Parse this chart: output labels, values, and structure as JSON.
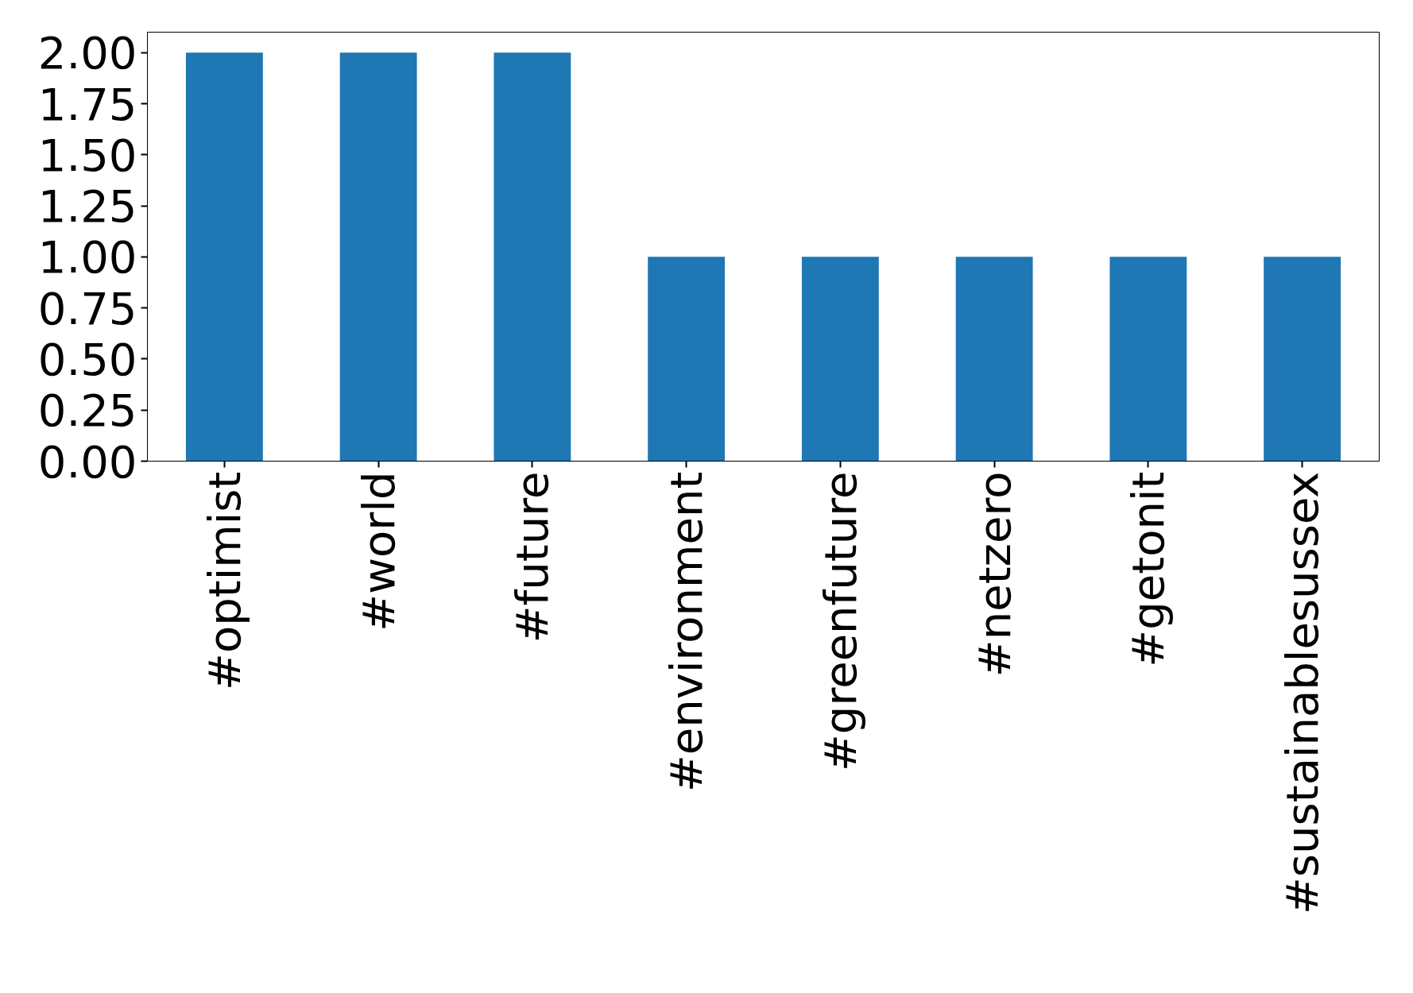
{
  "chart_data": {
    "type": "bar",
    "categories": [
      "#optimist",
      "#world",
      "#future",
      "#environment",
      "#greenfuture",
      "#netzero",
      "#getonit",
      "#sustainablesussex"
    ],
    "values": [
      2,
      2,
      2,
      1,
      1,
      1,
      1,
      1
    ],
    "color": "#1f77b4",
    "ylim": [
      0,
      2.1
    ],
    "yticks": [
      {
        "value": 0,
        "label": "0.00"
      },
      {
        "value": 0.25,
        "label": "0.25"
      },
      {
        "value": 0.5,
        "label": "0.50"
      },
      {
        "value": 0.75,
        "label": "0.75"
      },
      {
        "value": 1,
        "label": "1.00"
      },
      {
        "value": 1.25,
        "label": "1.25"
      },
      {
        "value": 1.5,
        "label": "1.50"
      },
      {
        "value": 1.75,
        "label": "1.75"
      },
      {
        "value": 2,
        "label": "2.00"
      }
    ],
    "grid": false
  }
}
